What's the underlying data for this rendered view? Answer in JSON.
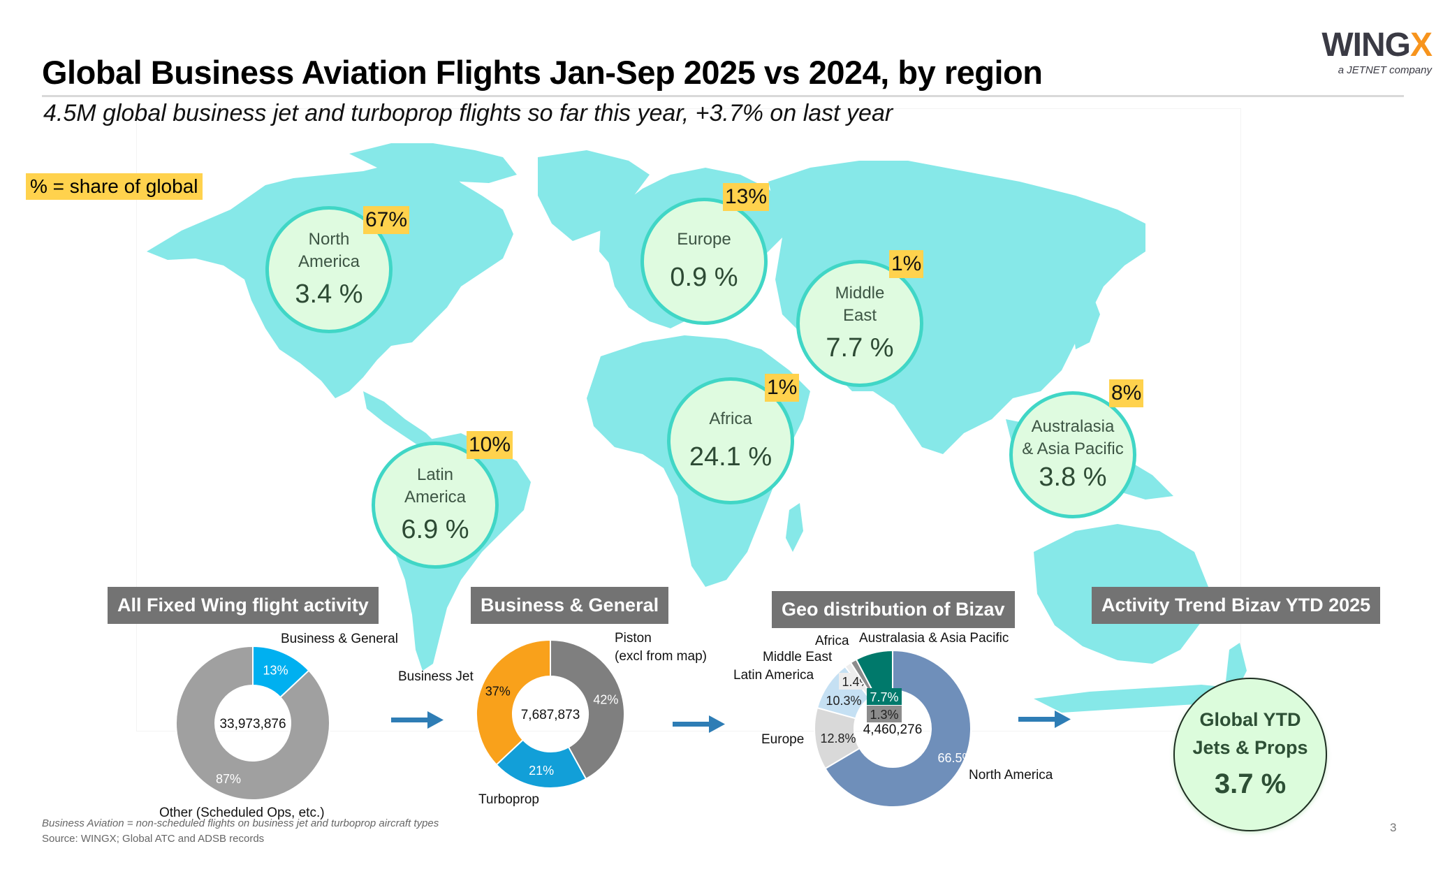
{
  "header": {
    "title": "Global Business Aviation Flights Jan-Sep 2025 vs 2024, by region",
    "subtitle": "4.5M global business jet and turboprop flights so far this year, +3.7% on last year",
    "logo_main": "WING",
    "logo_accent": "X",
    "logo_tagline": "a JETNET company"
  },
  "legend": {
    "text": "% = share of global"
  },
  "colors": {
    "map_land": "#86e8e8",
    "circle_fill": "#dffbe0",
    "circle_border": "#40d6c6",
    "badge": "#ffd24d",
    "header_bar": "#737373",
    "arrow": "#2e7db5"
  },
  "map_regions": [
    {
      "id": "north-america",
      "name_line1": "North",
      "name_line2": "America",
      "growth": "3.4 %",
      "share": "67%"
    },
    {
      "id": "europe",
      "name_line1": "Europe",
      "name_line2": "",
      "growth": "0.9 %",
      "share": "13%"
    },
    {
      "id": "middle-east",
      "name_line1": "Middle",
      "name_line2": "East",
      "growth": "7.7 %",
      "share": "1%"
    },
    {
      "id": "africa",
      "name_line1": "Africa",
      "name_line2": "",
      "growth": "24.1 %",
      "share": "1%"
    },
    {
      "id": "latin-america",
      "name_line1": "Latin",
      "name_line2": "America",
      "growth": "6.9 %",
      "share": "10%"
    },
    {
      "id": "australasia",
      "name_line1": "Australasia",
      "name_line2": "& Asia Pacific",
      "growth": "3.8 %",
      "share": "8%"
    }
  ],
  "sections": {
    "fixed_wing": "All Fixed Wing flight activity",
    "business_general": "Business & General",
    "geo": "Geo distribution of Bizav",
    "trend": "Activity Trend Bizav YTD 2025"
  },
  "chart_data": [
    {
      "type": "pie",
      "subtype": "donut",
      "title": "All Fixed Wing flight activity",
      "center_label": "33,973,876",
      "categories": [
        "Business & General",
        "Other (Scheduled Ops, etc.)"
      ],
      "values": [
        13,
        87
      ],
      "value_labels": [
        "13%",
        "87%"
      ],
      "colors": [
        "#00b0f0",
        "#a0a0a0"
      ],
      "label_colors": [
        "#ffffff",
        "#ffffff"
      ]
    },
    {
      "type": "pie",
      "subtype": "donut",
      "title": "Business & General",
      "center_label": "7,687,873",
      "categories": [
        "Piston\n(excl from map)",
        "Turboprop",
        "Business Jet"
      ],
      "category_lines": [
        [
          "Piston",
          "(excl from map)"
        ],
        [
          "Turboprop"
        ],
        [
          "Business Jet"
        ]
      ],
      "values": [
        42,
        21,
        37
      ],
      "value_labels": [
        "42%",
        "21%",
        "37%"
      ],
      "colors": [
        "#7f7f7f",
        "#129fd8",
        "#f9a11b"
      ],
      "label_colors": [
        "#ffffff",
        "#ffffff",
        "#111111"
      ]
    },
    {
      "type": "pie",
      "subtype": "donut",
      "title": "Geo distribution of Bizav",
      "center_label": "4,460,276",
      "categories": [
        "North America",
        "Europe",
        "Latin America",
        "Middle East",
        "Africa",
        "Australasia & Asia Pacific"
      ],
      "values": [
        66.5,
        12.8,
        10.3,
        1.4,
        1.3,
        7.7
      ],
      "value_labels": [
        "66.5%",
        "12.8%",
        "10.3%",
        "1.4%",
        "1.3%",
        "7.7%"
      ],
      "colors": [
        "#6f8fba",
        "#d9d9d9",
        "#c5e0f3",
        "#ededed",
        "#8c8c8c",
        "#00796b"
      ],
      "label_colors": [
        "#ffffff",
        "#222222",
        "#222222",
        "#222222",
        "#222222",
        "#ffffff"
      ]
    }
  ],
  "trend": {
    "line1": "Global YTD",
    "line2": "Jets & Props",
    "value": "3.7 %"
  },
  "footer": {
    "footnote": "Business Aviation = non-scheduled flights on business jet and turboprop aircraft types",
    "source": "Source: WINGX; Global ATC and ADSB records",
    "page_number": "3"
  }
}
